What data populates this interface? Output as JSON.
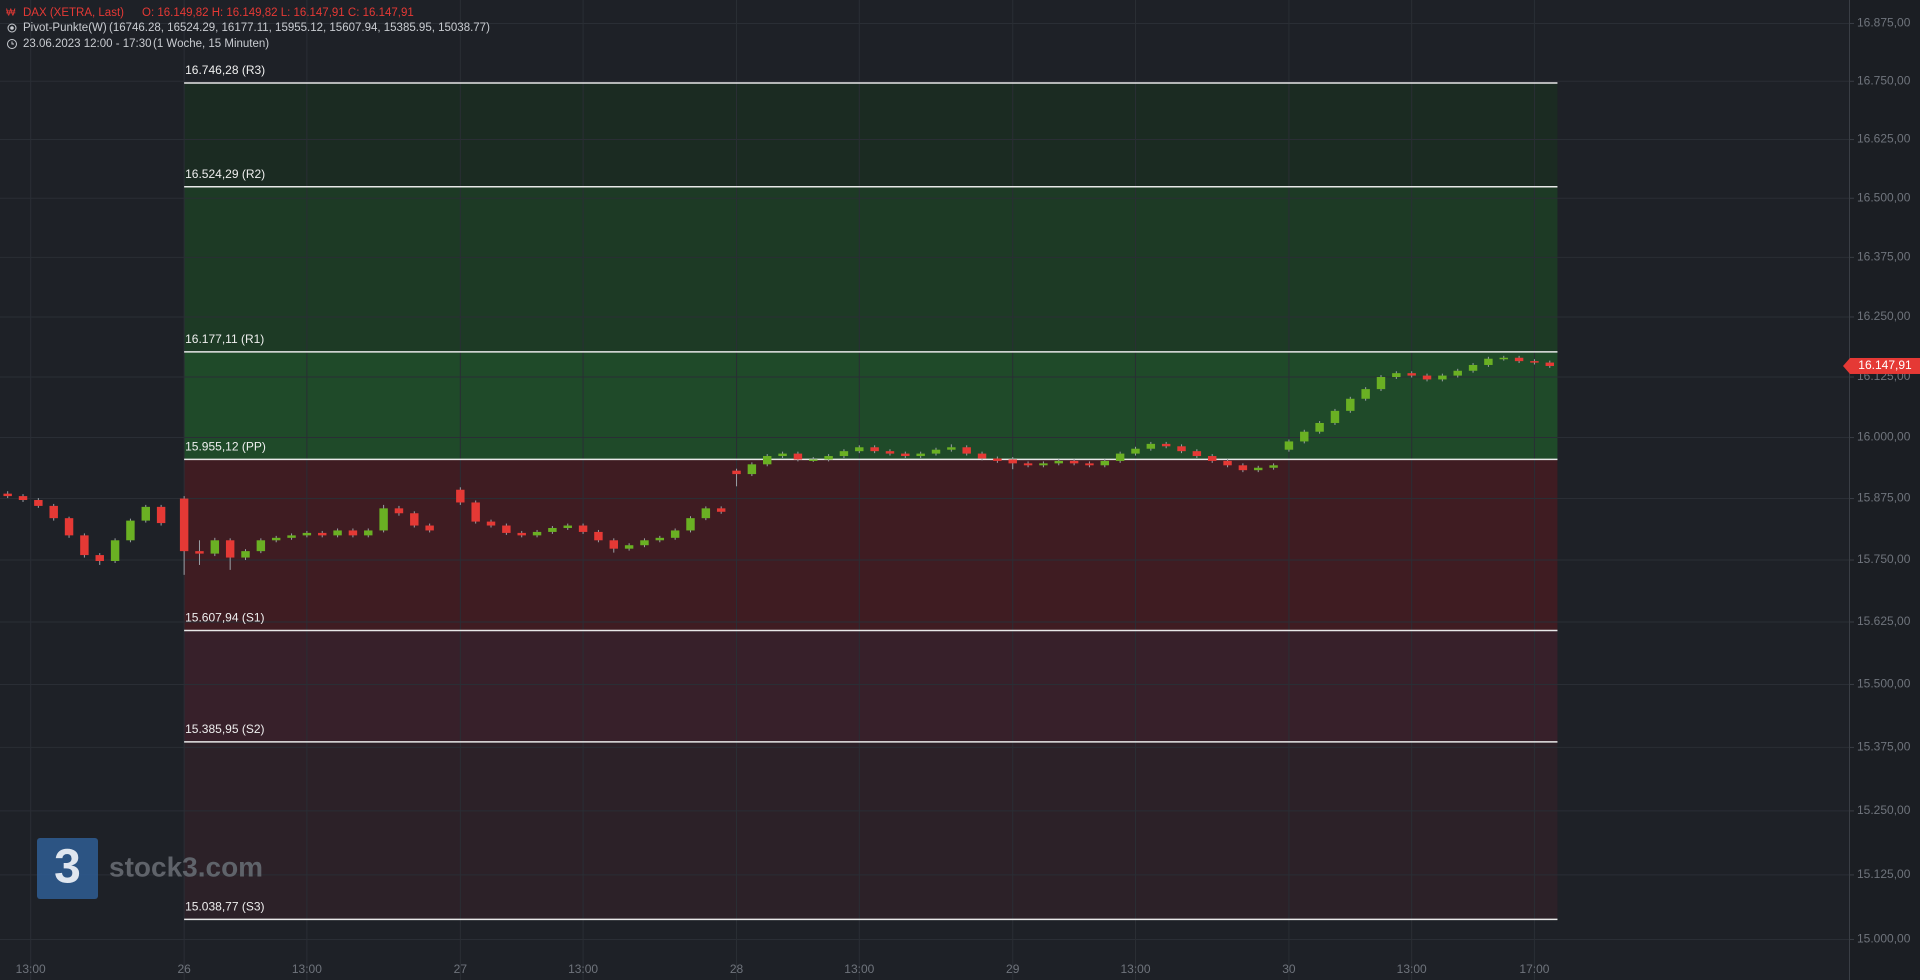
{
  "chart_data": {
    "type": "candlestick",
    "title": "DAX (XETRA, Last)",
    "quote": "O: 16.149,82  H: 16.149,82  L: 16.147,91  C: 16.147,91",
    "indicator": "Pivot-Punkte(W)",
    "indicator_values": "(16746.28,  16524.29,  16177.11,  15955.12,  15607.94,  15385.95,  15038.77)",
    "period": "23.06.2023 12:00 - 17:30",
    "interval": "(1 Woche, 15 Minuten)",
    "watermark": "stock3.com",
    "logo_mark": "3",
    "log_scale": true,
    "grid": true,
    "up_color": "#6ab023",
    "down_color": "#e53935",
    "zone_colors": [
      "#1b2b22",
      "#1d3a25",
      "#1f4a29",
      "#3f1c22",
      "#37202a",
      "#2c2128"
    ],
    "ylim": [
      14922,
      16926
    ],
    "yticks": [
      {
        "value": 16875,
        "label": "16.875,00"
      },
      {
        "value": 16750,
        "label": "16.750,00"
      },
      {
        "value": 16625,
        "label": "16.625,00"
      },
      {
        "value": 16500,
        "label": "16.500,00"
      },
      {
        "value": 16375,
        "label": "16.375,00"
      },
      {
        "value": 16250,
        "label": "16.250,00"
      },
      {
        "value": 16125,
        "label": "16.125,00"
      },
      {
        "value": 16000,
        "label": "16.000,00"
      },
      {
        "value": 15875,
        "label": "15.875,00"
      },
      {
        "value": 15750,
        "label": "15.750,00"
      },
      {
        "value": 15625,
        "label": "15.625,00"
      },
      {
        "value": 15500,
        "label": "15.500,00"
      },
      {
        "value": 15375,
        "label": "15.375,00"
      },
      {
        "value": 15250,
        "label": "15.250,00"
      },
      {
        "value": 15125,
        "label": "15.125,00"
      },
      {
        "value": 15000,
        "label": "15.000,00"
      }
    ],
    "xlim": [
      -24,
      217
    ],
    "xticks": [
      {
        "value": -20,
        "label": "13:00"
      },
      {
        "value": 0,
        "label": "26"
      },
      {
        "value": 16,
        "label": "13:00"
      },
      {
        "value": 36,
        "label": "27"
      },
      {
        "value": 52,
        "label": "13:00"
      },
      {
        "value": 72,
        "label": "28"
      },
      {
        "value": 88,
        "label": "13:00"
      },
      {
        "value": 108,
        "label": "29"
      },
      {
        "value": 124,
        "label": "13:00"
      },
      {
        "value": 144,
        "label": "30"
      },
      {
        "value": 160,
        "label": "13:00"
      },
      {
        "value": 176,
        "label": "17:00"
      }
    ],
    "pivots": [
      {
        "value": 16746.28,
        "label": "16.746,28 (R3)"
      },
      {
        "value": 16524.29,
        "label": "16.524,29 (R2)"
      },
      {
        "value": 16177.11,
        "label": "16.177,11 (R1)"
      },
      {
        "value": 15955.12,
        "label": "15.955,12 (PP)"
      },
      {
        "value": 15607.94,
        "label": "15.607,94 (S1)"
      },
      {
        "value": 15385.95,
        "label": "15.385,95 (S2)"
      },
      {
        "value": 15038.77,
        "label": "15.038,77 (S3)"
      }
    ],
    "last_price": {
      "value": 16147.91,
      "label": "16.147,91"
    },
    "x": [
      -23,
      -21,
      -19,
      -17,
      -15,
      -13,
      -11,
      -9,
      -7,
      -5,
      -3,
      0,
      2,
      4,
      6,
      8,
      10,
      12,
      14,
      16,
      18,
      20,
      22,
      24,
      26,
      28,
      30,
      32,
      36,
      38,
      40,
      42,
      44,
      46,
      48,
      50,
      52,
      54,
      56,
      58,
      60,
      62,
      64,
      66,
      68,
      70,
      72,
      74,
      76,
      78,
      80,
      82,
      84,
      86,
      88,
      90,
      92,
      94,
      96,
      98,
      100,
      102,
      104,
      106,
      108,
      110,
      112,
      114,
      116,
      118,
      120,
      122,
      124,
      126,
      128,
      130,
      132,
      134,
      136,
      138,
      140,
      142,
      144,
      146,
      148,
      150,
      152,
      154,
      156,
      158,
      160,
      162,
      164,
      166,
      168,
      170,
      172,
      174,
      176,
      178
    ],
    "ohlc": [
      [
        15885,
        15890,
        15876,
        15880
      ],
      [
        15880,
        15884,
        15868,
        15872
      ],
      [
        15872,
        15876,
        15856,
        15860
      ],
      [
        15860,
        15864,
        15830,
        15835
      ],
      [
        15835,
        15838,
        15795,
        15800
      ],
      [
        15800,
        15804,
        15755,
        15760
      ],
      [
        15760,
        15764,
        15740,
        15748
      ],
      [
        15748,
        15794,
        15744,
        15790
      ],
      [
        15790,
        15834,
        15786,
        15830
      ],
      [
        15830,
        15862,
        15826,
        15858
      ],
      [
        15858,
        15862,
        15820,
        15825
      ],
      [
        15875,
        15880,
        15720,
        15768
      ],
      [
        15768,
        15790,
        15740,
        15763
      ],
      [
        15763,
        15795,
        15758,
        15790
      ],
      [
        15790,
        15794,
        15730,
        15755
      ],
      [
        15755,
        15772,
        15750,
        15768
      ],
      [
        15768,
        15794,
        15764,
        15790
      ],
      [
        15790,
        15799,
        15786,
        15795
      ],
      [
        15795,
        15804,
        15791,
        15800
      ],
      [
        15800,
        15809,
        15796,
        15805
      ],
      [
        15805,
        15809,
        15796,
        15800
      ],
      [
        15800,
        15814,
        15796,
        15810
      ],
      [
        15810,
        15814,
        15796,
        15800
      ],
      [
        15800,
        15814,
        15796,
        15810
      ],
      [
        15810,
        15862,
        15806,
        15855
      ],
      [
        15855,
        15860,
        15840,
        15845
      ],
      [
        15845,
        15849,
        15816,
        15820
      ],
      [
        15820,
        15824,
        15806,
        15810
      ],
      [
        15893,
        15898,
        15862,
        15867
      ],
      [
        15867,
        15871,
        15824,
        15828
      ],
      [
        15828,
        15832,
        15816,
        15820
      ],
      [
        15820,
        15824,
        15801,
        15805
      ],
      [
        15805,
        15809,
        15796,
        15800
      ],
      [
        15800,
        15811,
        15796,
        15807
      ],
      [
        15807,
        15819,
        15803,
        15815
      ],
      [
        15815,
        15824,
        15811,
        15820
      ],
      [
        15820,
        15824,
        15803,
        15807
      ],
      [
        15807,
        15811,
        15786,
        15790
      ],
      [
        15790,
        15794,
        15765,
        15773
      ],
      [
        15773,
        15784,
        15769,
        15780
      ],
      [
        15780,
        15794,
        15776,
        15790
      ],
      [
        15790,
        15799,
        15786,
        15795
      ],
      [
        15795,
        15814,
        15791,
        15810
      ],
      [
        15810,
        15839,
        15806,
        15835
      ],
      [
        15835,
        15859,
        15831,
        15855
      ],
      [
        15855,
        15859,
        15844,
        15848
      ],
      [
        15932,
        15936,
        15900,
        15925
      ],
      [
        15925,
        15949,
        15921,
        15945
      ],
      [
        15945,
        15966,
        15941,
        15962
      ],
      [
        15962,
        15971,
        15958,
        15967
      ],
      [
        15967,
        15971,
        15951,
        15955
      ],
      [
        15955,
        15960,
        15950,
        15955
      ],
      [
        15955,
        15966,
        15951,
        15962
      ],
      [
        15962,
        15976,
        15958,
        15972
      ],
      [
        15972,
        15984,
        15968,
        15980
      ],
      [
        15980,
        15984,
        15968,
        15972
      ],
      [
        15972,
        15976,
        15963,
        15967
      ],
      [
        15967,
        15971,
        15958,
        15962
      ],
      [
        15962,
        15971,
        15958,
        15967
      ],
      [
        15967,
        15979,
        15963,
        15975
      ],
      [
        15975,
        15986,
        15971,
        15980
      ],
      [
        15980,
        15984,
        15963,
        15967
      ],
      [
        15967,
        15971,
        15953,
        15957
      ],
      [
        15957,
        15961,
        15948,
        15952
      ],
      [
        15955,
        15960,
        15935,
        15947
      ],
      [
        15947,
        15951,
        15939,
        15943
      ],
      [
        15943,
        15951,
        15939,
        15947
      ],
      [
        15947,
        15956,
        15943,
        15952
      ],
      [
        15952,
        15956,
        15943,
        15947
      ],
      [
        15947,
        15951,
        15939,
        15943
      ],
      [
        15943,
        15956,
        15939,
        15952
      ],
      [
        15952,
        15971,
        15948,
        15967
      ],
      [
        15967,
        15981,
        15963,
        15977
      ],
      [
        15977,
        15991,
        15973,
        15987
      ],
      [
        15987,
        15991,
        15978,
        15982
      ],
      [
        15982,
        15986,
        15968,
        15972
      ],
      [
        15972,
        15976,
        15958,
        15962
      ],
      [
        15962,
        15966,
        15948,
        15952
      ],
      [
        15952,
        15956,
        15939,
        15943
      ],
      [
        15943,
        15947,
        15929,
        15933
      ],
      [
        15933,
        15942,
        15929,
        15938
      ],
      [
        15938,
        15947,
        15934,
        15943
      ],
      [
        15975,
        15996,
        15971,
        15992
      ],
      [
        15992,
        16016,
        15988,
        16012
      ],
      [
        16012,
        16034,
        16008,
        16030
      ],
      [
        16030,
        16059,
        16026,
        16055
      ],
      [
        16055,
        16084,
        16051,
        16080
      ],
      [
        16080,
        16104,
        16076,
        16100
      ],
      [
        16100,
        16129,
        16096,
        16125
      ],
      [
        16125,
        16137,
        16121,
        16133
      ],
      [
        16133,
        16137,
        16124,
        16128
      ],
      [
        16128,
        16132,
        16116,
        16120
      ],
      [
        16120,
        16132,
        16116,
        16128
      ],
      [
        16128,
        16142,
        16124,
        16138
      ],
      [
        16138,
        16154,
        16134,
        16150
      ],
      [
        16150,
        16167,
        16146,
        16163
      ],
      [
        16163,
        16169,
        16159,
        16165
      ],
      [
        16165,
        16169,
        16154,
        16158
      ],
      [
        16158,
        16162,
        16151,
        16155
      ],
      [
        16155,
        16159,
        16144,
        16147.91
      ]
    ]
  }
}
